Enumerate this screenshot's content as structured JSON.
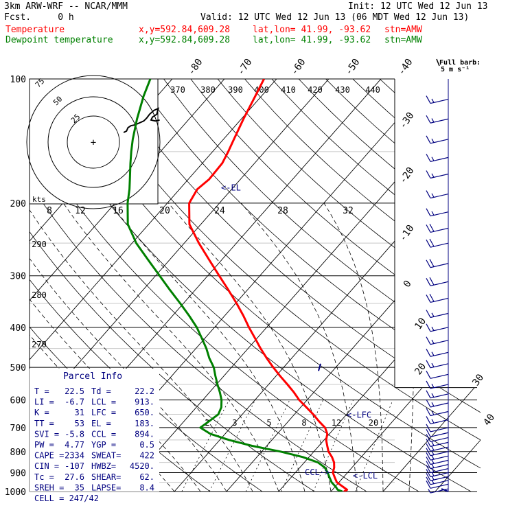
{
  "header": {
    "model": "3km ARW-WRF -- NCAR/MMM",
    "init": "Init: 12 UTC Wed 12 Jun 13",
    "fcst": "Fcst.     0 h",
    "valid": "Valid: 12 UTC Wed 12 Jun 13 (06 MDT Wed 12 Jun 13)",
    "temp_label": "Temperature",
    "dew_label": "Dewpoint temperature",
    "xy_temp": "x,y=592.84,609.28",
    "xy_dew": "x,y=592.84,609.28",
    "latlon_temp": "lat,lon= 41.99, -93.62",
    "latlon_dew": "lat,lon= 41.99, -93.62",
    "stn_temp": "stn=AMW",
    "stn_dew": "stn=AMW"
  },
  "colors": {
    "temperature": "#ff0000",
    "dewpoint": "#008000",
    "wind": "#000080",
    "header_title": "#000000",
    "annot": "#000080",
    "grid": "#000000",
    "faint_grid": "#c8c8c8"
  },
  "barb_legend": {
    "title": "Full barb:",
    "value": "5 m s⁻¹"
  },
  "chart_data": {
    "type": "line",
    "title": "",
    "ylabel": "",
    "pressure_ticks": [
      1000,
      900,
      800,
      700,
      600,
      500,
      400,
      300,
      200,
      100
    ],
    "ylim": [
      1000,
      100
    ],
    "series": [
      {
        "name": "Temperature",
        "color": "#ff0000",
        "points": [
          [
            1000,
            22.5
          ],
          [
            990,
            22.8
          ],
          [
            975,
            21.6
          ],
          [
            950,
            19.6
          ],
          [
            925,
            18.4
          ],
          [
            900,
            17.2
          ],
          [
            875,
            16.6
          ],
          [
            850,
            15.7
          ],
          [
            825,
            14.4
          ],
          [
            800,
            12.8
          ],
          [
            775,
            11.6
          ],
          [
            750,
            10.4
          ],
          [
            725,
            9.6
          ],
          [
            700,
            8.1
          ],
          [
            675,
            5.8
          ],
          [
            650,
            3.6
          ],
          [
            625,
            1.1
          ],
          [
            600,
            -1.5
          ],
          [
            575,
            -3.8
          ],
          [
            550,
            -6.4
          ],
          [
            525,
            -9.2
          ],
          [
            500,
            -12.0
          ],
          [
            475,
            -14.8
          ],
          [
            450,
            -17.6
          ],
          [
            425,
            -20.4
          ],
          [
            400,
            -23.4
          ],
          [
            375,
            -26.4
          ],
          [
            350,
            -29.8
          ],
          [
            325,
            -33.6
          ],
          [
            300,
            -37.8
          ],
          [
            275,
            -42.3
          ],
          [
            250,
            -47.2
          ],
          [
            225,
            -52.2
          ],
          [
            200,
            -55.8
          ],
          [
            185,
            -56.6
          ],
          [
            175,
            -56.0
          ],
          [
            160,
            -56.2
          ],
          [
            150,
            -57.0
          ],
          [
            140,
            -58.0
          ],
          [
            125,
            -59.6
          ],
          [
            110,
            -61.2
          ],
          [
            100,
            -62.4
          ]
        ]
      },
      {
        "name": "Dewpoint temperature",
        "color": "#008000",
        "points": [
          [
            1000,
            22.2
          ],
          [
            990,
            21.0
          ],
          [
            975,
            20.2
          ],
          [
            950,
            18.6
          ],
          [
            925,
            17.4
          ],
          [
            900,
            16.2
          ],
          [
            875,
            14.8
          ],
          [
            850,
            12.6
          ],
          [
            825,
            8.8
          ],
          [
            800,
            3.6
          ],
          [
            775,
            -2.8
          ],
          [
            750,
            -8.2
          ],
          [
            725,
            -12.8
          ],
          [
            700,
            -15.8
          ],
          [
            675,
            -15.2
          ],
          [
            650,
            -14.6
          ],
          [
            625,
            -15.2
          ],
          [
            600,
            -16.4
          ],
          [
            575,
            -18.0
          ],
          [
            550,
            -19.8
          ],
          [
            525,
            -21.6
          ],
          [
            500,
            -23.4
          ],
          [
            475,
            -25.8
          ],
          [
            450,
            -28.0
          ],
          [
            425,
            -30.6
          ],
          [
            400,
            -33.4
          ],
          [
            375,
            -36.8
          ],
          [
            350,
            -40.6
          ],
          [
            325,
            -44.8
          ],
          [
            300,
            -49.2
          ],
          [
            275,
            -54.0
          ],
          [
            250,
            -59.2
          ],
          [
            225,
            -64.0
          ],
          [
            200,
            -67.6
          ],
          [
            185,
            -69.6
          ],
          [
            175,
            -71.2
          ],
          [
            160,
            -73.8
          ],
          [
            150,
            -75.6
          ],
          [
            140,
            -77.4
          ],
          [
            125,
            -80.0
          ],
          [
            110,
            -82.6
          ],
          [
            100,
            -84.2
          ]
        ]
      }
    ],
    "isotherm_labels": [
      "-80",
      "-70",
      "-60",
      "-50",
      "-40",
      "-30",
      "-20",
      "-10",
      "0",
      "10",
      "20",
      "30",
      "40"
    ],
    "isotherm_values": [
      -80,
      -70,
      -60,
      -50,
      -40,
      -30,
      -20,
      -10,
      0,
      10,
      20,
      30,
      40
    ],
    "theta_labels": [
      "370",
      "380",
      "390",
      "400",
      "410",
      "420",
      "430",
      "440",
      "290",
      "280",
      "270"
    ],
    "mixing_ratio_labels": [
      "2",
      "3",
      "5",
      "8",
      "12",
      "20"
    ],
    "markers": [
      {
        "label": "<-EL",
        "pressure": 183
      },
      {
        "label": "<-LFC",
        "pressure": 650
      },
      {
        "label": "CCL->",
        "pressure": 894
      },
      {
        "label": "<-LCL",
        "pressure": 913
      }
    ],
    "wind_barbs": [
      {
        "p": 985,
        "speed": 5
      },
      {
        "p": 960,
        "speed": 10
      },
      {
        "p": 940,
        "speed": 15
      },
      {
        "p": 920,
        "speed": 15
      },
      {
        "p": 900,
        "speed": 15
      },
      {
        "p": 880,
        "speed": 15
      },
      {
        "p": 860,
        "speed": 15
      },
      {
        "p": 840,
        "speed": 15
      },
      {
        "p": 820,
        "speed": 15
      },
      {
        "p": 800,
        "speed": 15
      },
      {
        "p": 780,
        "speed": 15
      },
      {
        "p": 760,
        "speed": 15
      },
      {
        "p": 740,
        "speed": 10
      },
      {
        "p": 720,
        "speed": 10
      },
      {
        "p": 700,
        "speed": 10
      },
      {
        "p": 670,
        "speed": 15
      },
      {
        "p": 640,
        "speed": 15
      },
      {
        "p": 610,
        "speed": 15
      },
      {
        "p": 580,
        "speed": 15
      },
      {
        "p": 550,
        "speed": 15
      },
      {
        "p": 520,
        "speed": 10
      },
      {
        "p": 490,
        "speed": 15
      },
      {
        "p": 460,
        "speed": 15
      },
      {
        "p": 430,
        "speed": 15
      },
      {
        "p": 400,
        "speed": 15
      },
      {
        "p": 370,
        "speed": 15
      },
      {
        "p": 340,
        "speed": 20
      },
      {
        "p": 310,
        "speed": 20
      },
      {
        "p": 280,
        "speed": 20
      },
      {
        "p": 250,
        "speed": 20
      },
      {
        "p": 230,
        "speed": 20
      },
      {
        "p": 210,
        "speed": 15
      },
      {
        "p": 190,
        "speed": 15
      },
      {
        "p": 170,
        "speed": 15
      },
      {
        "p": 155,
        "speed": 15
      },
      {
        "p": 140,
        "speed": 15
      },
      {
        "p": 125,
        "speed": 15
      },
      {
        "p": 112,
        "speed": 15
      }
    ],
    "hodograph": {
      "ring_labels": [
        "25",
        "50",
        "75"
      ],
      "unit": "kts",
      "points": [
        [
          42,
          20
        ],
        [
          46,
          23
        ],
        [
          48,
          30
        ],
        [
          52,
          34
        ],
        [
          58,
          36
        ],
        [
          64,
          40
        ],
        [
          70,
          44
        ],
        [
          74,
          50
        ],
        [
          78,
          58
        ],
        [
          84,
          66
        ],
        [
          90,
          70
        ],
        [
          88,
          58
        ],
        [
          82,
          52
        ],
        [
          80,
          46
        ],
        [
          86,
          44
        ],
        [
          92,
          46
        ]
      ]
    },
    "hodo_mixing_labels": [
      "8",
      "12",
      "16",
      "20",
      "24",
      "28",
      "32"
    ]
  },
  "parcel_info": {
    "title": "Parcel Info",
    "rows": [
      [
        "T  =",
        "22.5",
        "Td =",
        "22.2"
      ],
      [
        "LI =",
        "-6.7",
        "LCL =",
        "913."
      ],
      [
        "K  =",
        "31",
        "LFC =",
        "650."
      ],
      [
        "TT =",
        "53",
        "EL  =",
        "183."
      ],
      [
        "SVI =",
        "-5.8",
        "CCL =",
        "894."
      ],
      [
        "PW =",
        "4.77",
        "YGP =",
        "0.5"
      ],
      [
        "CAPE =",
        "2334",
        "SWEAT=",
        "422"
      ],
      [
        "CIN =",
        "-107",
        "HWBZ=",
        "4520."
      ],
      [
        "Tc =",
        "27.6",
        "SHEAR=",
        "62."
      ],
      [
        "SREH =",
        "35",
        "LAPSE=",
        "8.4"
      ]
    ],
    "cell": "CELL = 247/42"
  }
}
